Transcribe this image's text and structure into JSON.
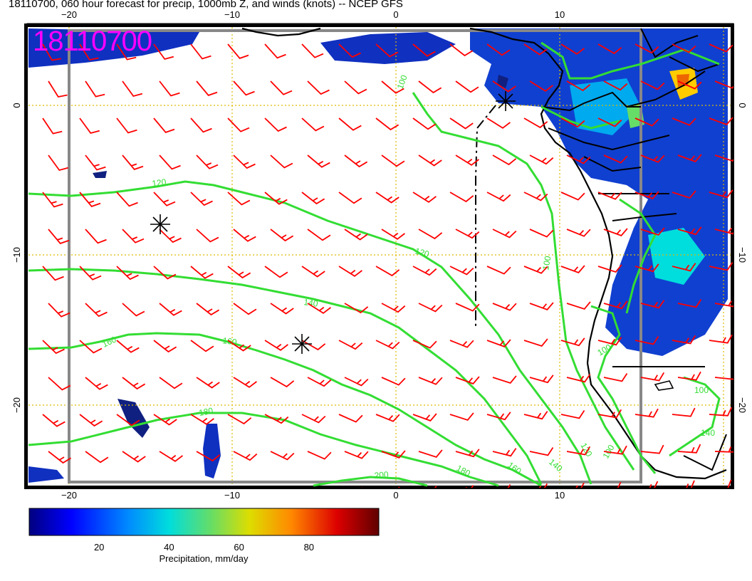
{
  "header": {
    "title": "18110700, 060 hour forecast for precip, 1000mb Z, and winds (knots) -- NCEP GFS",
    "stamp": "18110700"
  },
  "map": {
    "lon_range": [
      -22.5,
      20.5
    ],
    "lat_range": [
      -26.5,
      5.2
    ],
    "lon_ticks": [
      {
        "value": -20,
        "label": "−20"
      },
      {
        "value": -10,
        "label": "−10"
      },
      {
        "value": 0,
        "label": "0"
      },
      {
        "value": 10,
        "label": "10"
      }
    ],
    "lat_ticks": [
      {
        "value": 0,
        "label": "0"
      },
      {
        "value": -10,
        "label": "−10"
      },
      {
        "value": -20,
        "label": "−20"
      }
    ],
    "contours": [
      {
        "label": "100",
        "color": "#33dd33"
      },
      {
        "label": "120",
        "color": "#33dd33"
      },
      {
        "label": "140",
        "color": "#33dd33"
      },
      {
        "label": "160",
        "color": "#33dd33"
      },
      {
        "label": "180",
        "color": "#33dd33"
      },
      {
        "label": "200",
        "color": "#33dd33"
      }
    ],
    "markers": [
      "asterisk",
      "asterisk",
      "asterisk"
    ],
    "wind_barb_color": "#ff0000",
    "coast_color": "#000000",
    "grid_color": "#ddbb00"
  },
  "colorbar": {
    "label": "Precipitation, mm/day",
    "ticks": [
      "20",
      "40",
      "60",
      "80"
    ],
    "tick_values": [
      20,
      40,
      60,
      80
    ],
    "range": [
      0,
      100
    ],
    "colors": [
      "#000080",
      "#0000ff",
      "#0088ff",
      "#00dddd",
      "#66dd66",
      "#dddd00",
      "#ff8800",
      "#dd0000",
      "#600000"
    ]
  }
}
